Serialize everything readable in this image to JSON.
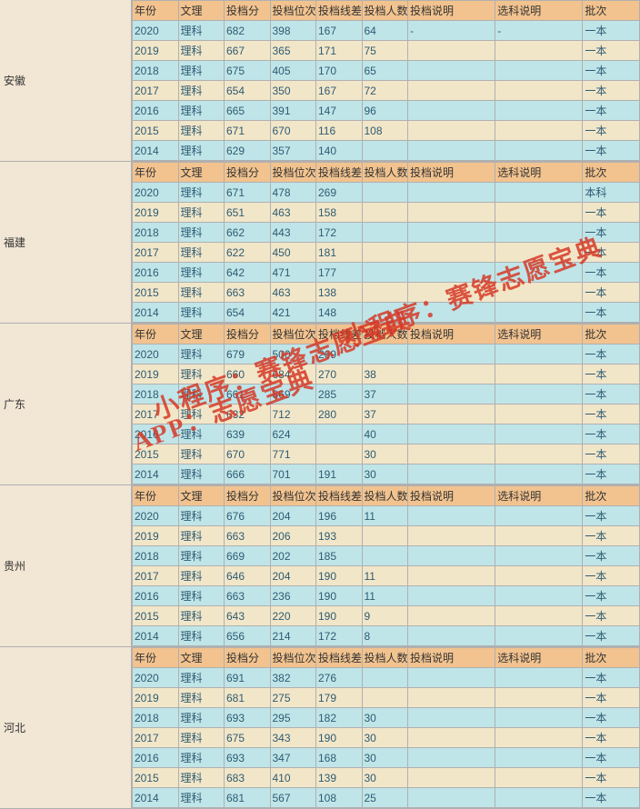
{
  "headers": {
    "year": "年份",
    "wenli": "文理",
    "score": "投档分",
    "rank": "投档位次",
    "diff": "投档线差",
    "count": "投档人数",
    "desc1": "投档说明",
    "desc2": "选科说明",
    "batch": "批次"
  },
  "watermarks": {
    "line1": "小程序：赛锋志愿宝典",
    "line2": "APP：志愿宝典"
  },
  "colors": {
    "header_bg": "#f2c38f",
    "province_bg": "#f2e6d4",
    "row_even_bg": "#bfe5e8",
    "row_odd_bg": "#f2e6c8",
    "border": "#b0b0b0",
    "text": "#2d5b73",
    "watermark": "#d63a28"
  },
  "provinces": [
    {
      "name": "安徽",
      "rows": [
        {
          "year": "2020",
          "wenli": "理科",
          "score": "682",
          "rank": "398",
          "diff": "167",
          "count": "64",
          "desc1": "-",
          "desc2": "-",
          "batch": "一本"
        },
        {
          "year": "2019",
          "wenli": "理科",
          "score": "667",
          "rank": "365",
          "diff": "171",
          "count": "75",
          "desc1": "",
          "desc2": "",
          "batch": "一本"
        },
        {
          "year": "2018",
          "wenli": "理科",
          "score": "675",
          "rank": "405",
          "diff": "170",
          "count": "65",
          "desc1": "",
          "desc2": "",
          "batch": "一本"
        },
        {
          "year": "2017",
          "wenli": "理科",
          "score": "654",
          "rank": "350",
          "diff": "167",
          "count": "72",
          "desc1": "",
          "desc2": "",
          "batch": "一本"
        },
        {
          "year": "2016",
          "wenli": "理科",
          "score": "665",
          "rank": "391",
          "diff": "147",
          "count": "96",
          "desc1": "",
          "desc2": "",
          "batch": "一本"
        },
        {
          "year": "2015",
          "wenli": "理科",
          "score": "671",
          "rank": "670",
          "diff": "116",
          "count": "108",
          "desc1": "",
          "desc2": "",
          "batch": "一本"
        },
        {
          "year": "2014",
          "wenli": "理科",
          "score": "629",
          "rank": "357",
          "diff": "140",
          "count": "",
          "desc1": "",
          "desc2": "",
          "batch": "一本"
        }
      ]
    },
    {
      "name": "福建",
      "rows": [
        {
          "year": "2020",
          "wenli": "理科",
          "score": "671",
          "rank": "478",
          "diff": "269",
          "count": "",
          "desc1": "",
          "desc2": "",
          "batch": "本科"
        },
        {
          "year": "2019",
          "wenli": "理科",
          "score": "651",
          "rank": "463",
          "diff": "158",
          "count": "",
          "desc1": "",
          "desc2": "",
          "batch": "一本"
        },
        {
          "year": "2018",
          "wenli": "理科",
          "score": "662",
          "rank": "443",
          "diff": "172",
          "count": "",
          "desc1": "",
          "desc2": "",
          "batch": "一本"
        },
        {
          "year": "2017",
          "wenli": "理科",
          "score": "622",
          "rank": "450",
          "diff": "181",
          "count": "",
          "desc1": "",
          "desc2": "",
          "batch": "一本"
        },
        {
          "year": "2016",
          "wenli": "理科",
          "score": "642",
          "rank": "471",
          "diff": "177",
          "count": "",
          "desc1": "",
          "desc2": "",
          "batch": "一本"
        },
        {
          "year": "2015",
          "wenli": "理科",
          "score": "663",
          "rank": "463",
          "diff": "138",
          "count": "",
          "desc1": "",
          "desc2": "",
          "batch": "一本"
        },
        {
          "year": "2014",
          "wenli": "理科",
          "score": "654",
          "rank": "421",
          "diff": "148",
          "count": "",
          "desc1": "",
          "desc2": "",
          "batch": "一本"
        }
      ]
    },
    {
      "name": "广东",
      "rows": [
        {
          "year": "2020",
          "wenli": "理科",
          "score": "679",
          "rank": "500",
          "diff": "269",
          "count": "",
          "desc1": "",
          "desc2": "",
          "batch": "一本"
        },
        {
          "year": "2019",
          "wenli": "理科",
          "score": "660",
          "rank": "684",
          "diff": "270",
          "count": "38",
          "desc1": "",
          "desc2": "",
          "batch": "一本"
        },
        {
          "year": "2018",
          "wenli": "理科",
          "score": "661",
          "rank": "869",
          "diff": "285",
          "count": "37",
          "desc1": "",
          "desc2": "",
          "batch": "一本"
        },
        {
          "year": "2017",
          "wenli": "理科",
          "score": "632",
          "rank": "712",
          "diff": "280",
          "count": "37",
          "desc1": "",
          "desc2": "",
          "batch": "一本"
        },
        {
          "year": "2016",
          "wenli": "理科",
          "score": "639",
          "rank": "624",
          "diff": "",
          "count": "40",
          "desc1": "",
          "desc2": "",
          "batch": "一本"
        },
        {
          "year": "2015",
          "wenli": "理科",
          "score": "670",
          "rank": "771",
          "diff": "",
          "count": "30",
          "desc1": "",
          "desc2": "",
          "batch": "一本"
        },
        {
          "year": "2014",
          "wenli": "理科",
          "score": "666",
          "rank": "701",
          "diff": "191",
          "count": "30",
          "desc1": "",
          "desc2": "",
          "batch": "一本"
        }
      ]
    },
    {
      "name": "贵州",
      "rows": [
        {
          "year": "2020",
          "wenli": "理科",
          "score": "676",
          "rank": "204",
          "diff": "196",
          "count": "11",
          "desc1": "",
          "desc2": "",
          "batch": "一本"
        },
        {
          "year": "2019",
          "wenli": "理科",
          "score": "663",
          "rank": "206",
          "diff": "193",
          "count": "",
          "desc1": "",
          "desc2": "",
          "batch": "一本"
        },
        {
          "year": "2018",
          "wenli": "理科",
          "score": "669",
          "rank": "202",
          "diff": "185",
          "count": "",
          "desc1": "",
          "desc2": "",
          "batch": "一本"
        },
        {
          "year": "2017",
          "wenli": "理科",
          "score": "646",
          "rank": "204",
          "diff": "190",
          "count": "11",
          "desc1": "",
          "desc2": "",
          "batch": "一本"
        },
        {
          "year": "2016",
          "wenli": "理科",
          "score": "663",
          "rank": "236",
          "diff": "190",
          "count": "11",
          "desc1": "",
          "desc2": "",
          "batch": "一本"
        },
        {
          "year": "2015",
          "wenli": "理科",
          "score": "643",
          "rank": "220",
          "diff": "190",
          "count": "9",
          "desc1": "",
          "desc2": "",
          "batch": "一本"
        },
        {
          "year": "2014",
          "wenli": "理科",
          "score": "656",
          "rank": "214",
          "diff": "172",
          "count": "8",
          "desc1": "",
          "desc2": "",
          "batch": "一本"
        }
      ]
    },
    {
      "name": "河北",
      "rows": [
        {
          "year": "2020",
          "wenli": "理科",
          "score": "691",
          "rank": "382",
          "diff": "276",
          "count": "",
          "desc1": "",
          "desc2": "",
          "batch": "一本"
        },
        {
          "year": "2019",
          "wenli": "理科",
          "score": "681",
          "rank": "275",
          "diff": "179",
          "count": "",
          "desc1": "",
          "desc2": "",
          "batch": "一本"
        },
        {
          "year": "2018",
          "wenli": "理科",
          "score": "693",
          "rank": "295",
          "diff": "182",
          "count": "30",
          "desc1": "",
          "desc2": "",
          "batch": "一本"
        },
        {
          "year": "2017",
          "wenli": "理科",
          "score": "675",
          "rank": "343",
          "diff": "190",
          "count": "30",
          "desc1": "",
          "desc2": "",
          "batch": "一本"
        },
        {
          "year": "2016",
          "wenli": "理科",
          "score": "693",
          "rank": "347",
          "diff": "168",
          "count": "30",
          "desc1": "",
          "desc2": "",
          "batch": "一本"
        },
        {
          "year": "2015",
          "wenli": "理科",
          "score": "683",
          "rank": "410",
          "diff": "139",
          "count": "30",
          "desc1": "",
          "desc2": "",
          "batch": "一本"
        },
        {
          "year": "2014",
          "wenli": "理科",
          "score": "681",
          "rank": "567",
          "diff": "108",
          "count": "25",
          "desc1": "",
          "desc2": "",
          "batch": "一本"
        }
      ]
    }
  ]
}
